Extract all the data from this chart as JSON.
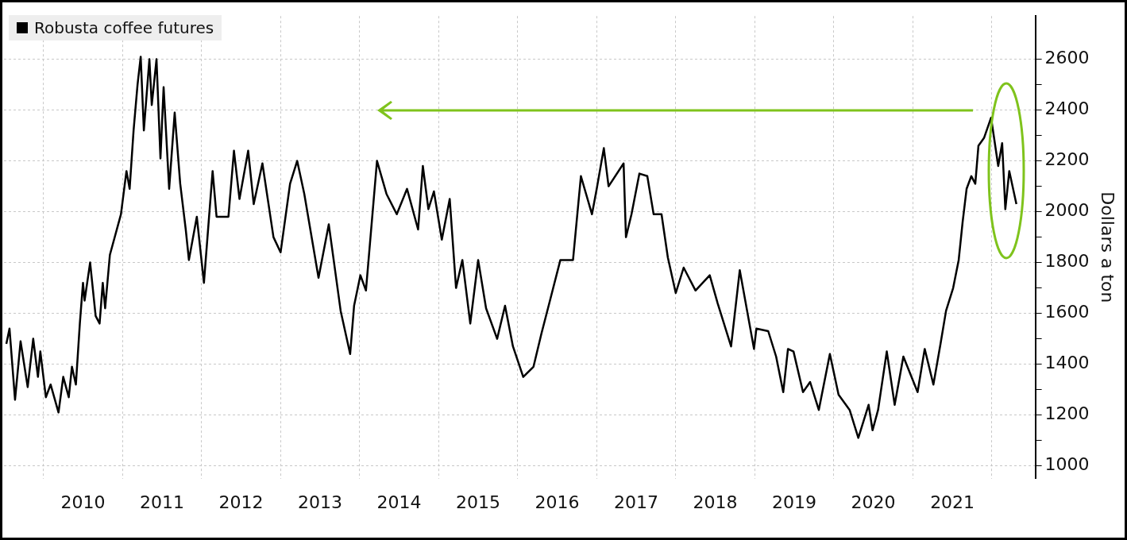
{
  "chart_data": {
    "type": "line",
    "ylabel": "Dollars a ton",
    "series": [
      {
        "name": "Robusta coffee futures",
        "color": "#000000",
        "x": [
          2009.53,
          2009.57,
          2009.64,
          2009.71,
          2009.8,
          2009.87,
          2009.93,
          2009.96,
          2010.03,
          2010.09,
          2010.19,
          2010.25,
          2010.32,
          2010.36,
          2010.41,
          2010.46,
          2010.5,
          2010.52,
          2010.59,
          2010.66,
          2010.71,
          2010.75,
          2010.78,
          2010.84,
          2010.98,
          2011.05,
          2011.09,
          2011.14,
          2011.19,
          2011.23,
          2011.27,
          2011.34,
          2011.37,
          2011.43,
          2011.48,
          2011.52,
          2011.59,
          2011.66,
          2011.73,
          2011.8,
          2011.84,
          2011.94,
          2012.03,
          2012.14,
          2012.19,
          2012.34,
          2012.41,
          2012.48,
          2012.59,
          2012.66,
          2012.77,
          2012.91,
          2013.0,
          2013.12,
          2013.21,
          2013.3,
          2013.48,
          2013.61,
          2013.76,
          2013.88,
          2013.93,
          2014.01,
          2014.08,
          2014.22,
          2014.34,
          2014.47,
          2014.6,
          2014.74,
          2014.8,
          2014.87,
          2014.94,
          2015.04,
          2015.14,
          2015.22,
          2015.3,
          2015.4,
          2015.5,
          2015.6,
          2015.74,
          2015.84,
          2015.94,
          2016.07,
          2016.2,
          2016.3,
          2016.4,
          2016.54,
          2016.7,
          2016.8,
          2016.94,
          2017.0,
          2017.09,
          2017.15,
          2017.34,
          2017.37,
          2017.44,
          2017.54,
          2017.64,
          2017.72,
          2017.82,
          2017.9,
          2018.0,
          2018.1,
          2018.25,
          2018.43,
          2018.53,
          2018.7,
          2018.81,
          2018.99,
          2019.02,
          2019.17,
          2019.27,
          2019.36,
          2019.42,
          2019.49,
          2019.61,
          2019.7,
          2019.81,
          2019.95,
          2020.06,
          2020.2,
          2020.31,
          2020.44,
          2020.49,
          2020.56,
          2020.67,
          2020.77,
          2020.88,
          2021.06,
          2021.15,
          2021.26,
          2021.35,
          2021.42,
          2021.51,
          2021.58,
          2021.63,
          2021.68,
          2021.74,
          2021.79,
          2021.83,
          2021.9,
          2021.99,
          2022.08,
          2022.13,
          2022.17,
          2022.22,
          2022.31
        ],
        "values": [
          1480,
          1540,
          1260,
          1490,
          1310,
          1500,
          1350,
          1450,
          1270,
          1320,
          1210,
          1350,
          1270,
          1390,
          1320,
          1560,
          1720,
          1650,
          1800,
          1590,
          1560,
          1720,
          1620,
          1830,
          1990,
          2160,
          2090,
          2320,
          2500,
          2610,
          2320,
          2600,
          2420,
          2600,
          2210,
          2490,
          2090,
          2390,
          2110,
          1930,
          1810,
          1980,
          1720,
          2160,
          1980,
          1980,
          2240,
          2050,
          2240,
          2030,
          2190,
          1900,
          1840,
          2110,
          2200,
          2070,
          1740,
          1950,
          1610,
          1440,
          1630,
          1750,
          1690,
          2200,
          2070,
          1990,
          2090,
          1930,
          2180,
          2010,
          2080,
          1890,
          2050,
          1700,
          1810,
          1560,
          1810,
          1620,
          1500,
          1630,
          1470,
          1350,
          1390,
          1520,
          1640,
          1810,
          1810,
          2140,
          1990,
          2090,
          2250,
          2100,
          2190,
          1900,
          1990,
          2150,
          2140,
          1990,
          1990,
          1820,
          1680,
          1780,
          1690,
          1750,
          1640,
          1470,
          1770,
          1460,
          1540,
          1530,
          1430,
          1290,
          1460,
          1450,
          1290,
          1330,
          1220,
          1440,
          1280,
          1220,
          1110,
          1240,
          1140,
          1220,
          1450,
          1240,
          1430,
          1290,
          1460,
          1320,
          1480,
          1610,
          1700,
          1810,
          1960,
          2090,
          2140,
          2110,
          2260,
          2290,
          2370,
          2180,
          2270,
          2010,
          2160,
          2030
        ]
      }
    ],
    "xlim": [
      2009.5,
      2022.55
    ],
    "xticks": [
      {
        "value": 2010,
        "label": null
      },
      {
        "value": 2010.5,
        "label": "2010"
      },
      {
        "value": 2011,
        "label": null
      },
      {
        "value": 2011.5,
        "label": "2011"
      },
      {
        "value": 2012,
        "label": null
      },
      {
        "value": 2012.5,
        "label": "2012"
      },
      {
        "value": 2013,
        "label": null
      },
      {
        "value": 2013.5,
        "label": "2013"
      },
      {
        "value": 2014,
        "label": null
      },
      {
        "value": 2014.5,
        "label": "2014"
      },
      {
        "value": 2015,
        "label": null
      },
      {
        "value": 2015.5,
        "label": "2015"
      },
      {
        "value": 2016,
        "label": null
      },
      {
        "value": 2016.5,
        "label": "2016"
      },
      {
        "value": 2017,
        "label": null
      },
      {
        "value": 2017.5,
        "label": "2017"
      },
      {
        "value": 2018,
        "label": null
      },
      {
        "value": 2018.5,
        "label": "2018"
      },
      {
        "value": 2019,
        "label": null
      },
      {
        "value": 2019.5,
        "label": "2019"
      },
      {
        "value": 2020,
        "label": null
      },
      {
        "value": 2020.5,
        "label": "2020"
      },
      {
        "value": 2021,
        "label": null
      },
      {
        "value": 2021.5,
        "label": "2021"
      },
      {
        "value": 2022,
        "label": null
      }
    ],
    "ylim": [
      950,
      2770
    ],
    "yticks": [
      1000,
      {
        "value": 1100,
        "label": null
      },
      1200,
      {
        "value": 1300,
        "label": null
      },
      1400,
      {
        "value": 1500,
        "label": null
      },
      1600,
      {
        "value": 1700,
        "label": null
      },
      1800,
      {
        "value": 1900,
        "label": null
      },
      2000,
      {
        "value": 2100,
        "label": null
      },
      2200,
      {
        "value": 2300,
        "label": null
      },
      2400,
      {
        "value": 2500,
        "label": null
      },
      2600
    ],
    "grid": true,
    "legend": "top left",
    "marker": "none",
    "line_style": "solid"
  }
}
